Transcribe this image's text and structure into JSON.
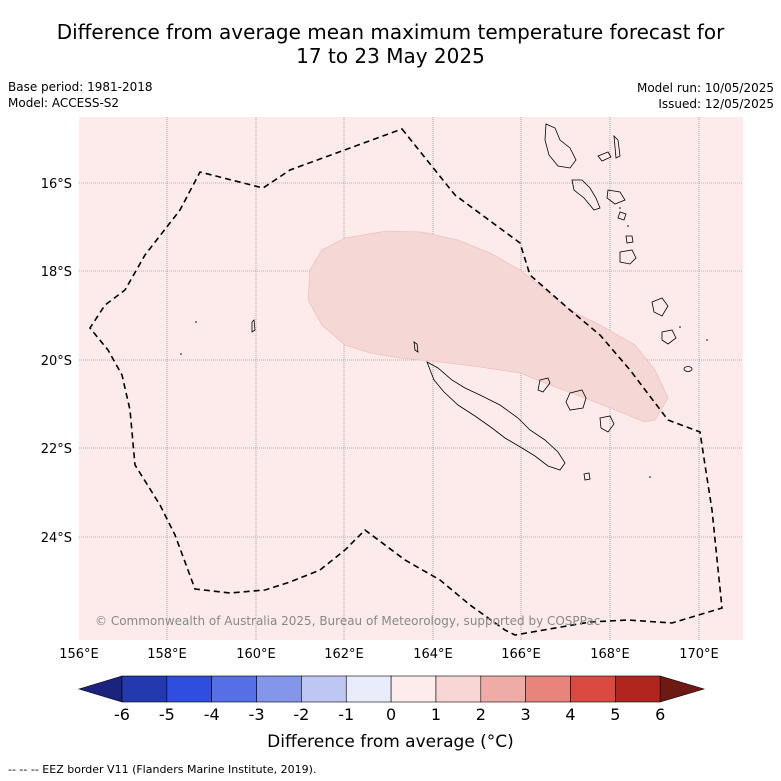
{
  "title_line1": "Difference from average mean maximum temperature forecast for",
  "title_line2": "17 to 23 May 2025",
  "base_period": "Base period: 1981-2018",
  "model": "Model: ACCESS-S2",
  "model_run": "Model run: 10/05/2025",
  "issued": "Issued: 12/05/2025",
  "copyright": "© Commonwealth of Australia 2025, Bureau of Meteorology, supported by COSPPac",
  "lon_ticks": [
    "156°E",
    "158°E",
    "160°E",
    "162°E",
    "164°E",
    "166°E",
    "168°E",
    "170°E"
  ],
  "lat_ticks": [
    "16°S",
    "18°S",
    "20°S",
    "22°S",
    "24°S"
  ],
  "colorbar": {
    "ticks": [
      "-6",
      "-5",
      "-4",
      "-3",
      "-2",
      "-1",
      "0",
      "1",
      "2",
      "3",
      "4",
      "5",
      "6"
    ],
    "colors": [
      "#1a237e",
      "#2339b0",
      "#2f4ee0",
      "#5570e6",
      "#8496ea",
      "#bec6f2",
      "#e9ecfb",
      "#fdeceb",
      "#f7d6d4",
      "#efaba6",
      "#e8847c",
      "#db4a40",
      "#b0261f",
      "#6e1a14"
    ],
    "label": "Difference from average (°C)"
  },
  "map_colors": {
    "background": "#fcebea",
    "anomaly_patch": "#f5d8d6"
  },
  "footnote": "--  --  -- EEZ border V11 (Flanders Marine Institute, 2019)."
}
